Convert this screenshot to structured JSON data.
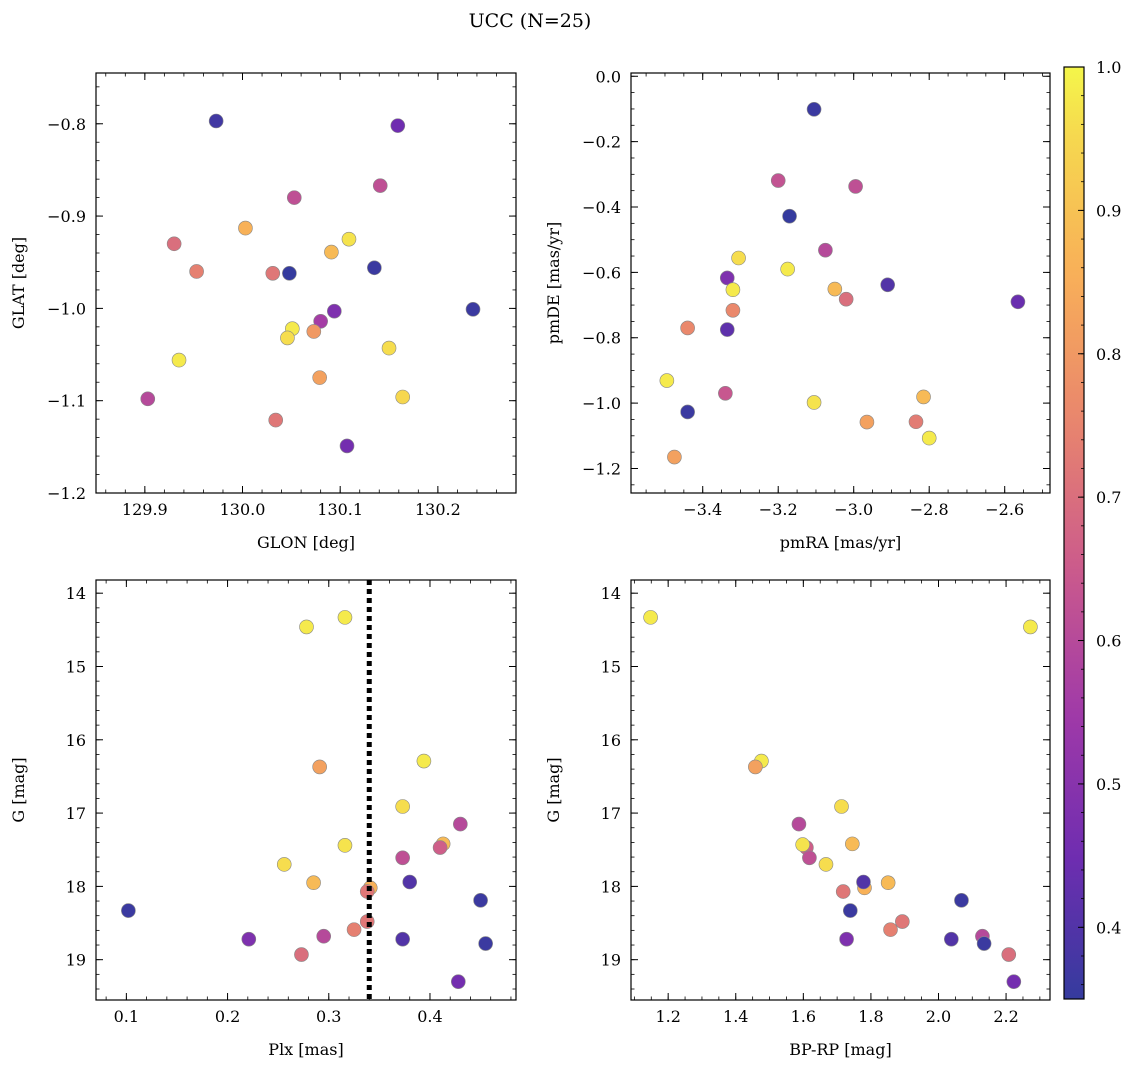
{
  "figure": {
    "suptitle": "UCC (N=25)"
  },
  "chart_data": [
    {
      "type": "scatter",
      "id": "glon-glat",
      "xlabel": "GLON [deg]",
      "ylabel": "GLAT [deg]",
      "xlim": [
        129.85,
        130.28
      ],
      "ylim": [
        -1.2,
        -0.745
      ],
      "xticks": [
        129.9,
        130.0,
        130.1,
        130.2
      ],
      "xticklabels": [
        "129.9",
        "130.0",
        "130.1",
        "130.2"
      ],
      "yticks": [
        -0.8,
        -0.9,
        -1.0,
        -1.1,
        -1.2
      ],
      "yticklabels": [
        "−0.8",
        "−0.9",
        "−1.0",
        "−1.1",
        "−1.2"
      ],
      "x": [
        129.973,
        130.159,
        130.141,
        130.053,
        130.003,
        129.93,
        130.109,
        130.091,
        129.953,
        130.031,
        130.048,
        130.135,
        130.236,
        130.094,
        130.08,
        130.051,
        130.073,
        130.046,
        130.15,
        129.935,
        130.079,
        130.164,
        129.903,
        130.034,
        130.107
      ],
      "y": [
        -0.797,
        -0.802,
        -0.867,
        -0.88,
        -0.913,
        -0.93,
        -0.925,
        -0.939,
        -0.96,
        -0.962,
        -0.962,
        -0.956,
        -1.001,
        -1.003,
        -1.014,
        -1.022,
        -1.025,
        -1.032,
        -1.043,
        -1.056,
        -1.075,
        -1.096,
        -1.098,
        -1.121,
        -1.149
      ],
      "c": [
        0.37,
        0.45,
        0.62,
        0.62,
        0.86,
        0.7,
        0.97,
        0.88,
        0.74,
        0.72,
        0.35,
        0.36,
        0.36,
        0.48,
        0.56,
        0.98,
        0.8,
        0.96,
        0.96,
        0.98,
        0.82,
        0.95,
        0.6,
        0.72,
        0.46
      ]
    },
    {
      "type": "scatter",
      "id": "pmra-pmde",
      "xlabel": "pmRA [mas/yr]",
      "ylabel": "pmDE [mas/yr]",
      "xlim": [
        -3.59,
        -2.48
      ],
      "ylim": [
        -1.275,
        0.01
      ],
      "xticks": [
        -3.4,
        -3.2,
        -3.0,
        -2.8,
        -2.6
      ],
      "xticklabels": [
        "−3.4",
        "−3.2",
        "−3.0",
        "−2.8",
        "−2.6"
      ],
      "yticks": [
        0.0,
        -0.2,
        -0.4,
        -0.6,
        -0.8,
        -1.0,
        -1.2
      ],
      "yticklabels": [
        "0.0",
        "−0.2",
        "−0.4",
        "−0.6",
        "−0.8",
        "−1.0",
        "−1.2"
      ],
      "x": [
        -3.105,
        -3.2,
        -2.995,
        -3.17,
        -3.075,
        -3.305,
        -3.175,
        -3.335,
        -2.91,
        -2.565,
        -3.05,
        -3.32,
        -3.02,
        -3.32,
        -3.44,
        -3.335,
        -3.495,
        -3.34,
        -3.44,
        -3.105,
        -2.815,
        -2.965,
        -2.835,
        -2.8,
        -3.475
      ],
      "y": [
        -0.101,
        -0.319,
        -0.337,
        -0.428,
        -0.532,
        -0.556,
        -0.59,
        -0.617,
        -0.638,
        -0.69,
        -0.651,
        -0.653,
        -0.682,
        -0.716,
        -0.77,
        -0.775,
        -0.931,
        -0.97,
        -1.027,
        -0.998,
        -0.981,
        -1.058,
        -1.057,
        -1.107,
        -1.165
      ],
      "c": [
        0.36,
        0.63,
        0.62,
        0.35,
        0.6,
        0.96,
        0.98,
        0.48,
        0.4,
        0.44,
        0.88,
        0.98,
        0.7,
        0.76,
        0.76,
        0.42,
        0.98,
        0.64,
        0.36,
        0.97,
        0.88,
        0.82,
        0.73,
        0.98,
        0.82
      ]
    },
    {
      "type": "scatter",
      "id": "plx-g",
      "xlabel": "Plx [mas]",
      "ylabel": "G [mag]",
      "xlim": [
        0.07,
        0.485
      ],
      "ylim": [
        19.55,
        13.82
      ],
      "y_inverted": true,
      "xticks": [
        0.1,
        0.2,
        0.3,
        0.4
      ],
      "xticklabels": [
        "0.1",
        "0.2",
        "0.3",
        "0.4"
      ],
      "yticks": [
        14,
        15,
        16,
        17,
        18,
        19
      ],
      "yticklabels": [
        "14",
        "15",
        "16",
        "17",
        "18",
        "19"
      ],
      "vline": {
        "x": 0.34,
        "style": "dotted",
        "color": "#000000"
      },
      "x": [
        0.316,
        0.278,
        0.394,
        0.291,
        0.373,
        0.43,
        0.413,
        0.316,
        0.41,
        0.373,
        0.256,
        0.285,
        0.341,
        0.38,
        0.338,
        0.102,
        0.45,
        0.338,
        0.325,
        0.221,
        0.295,
        0.373,
        0.455,
        0.273,
        0.428
      ],
      "y": [
        14.33,
        14.46,
        16.29,
        16.37,
        16.91,
        17.15,
        17.42,
        17.44,
        17.47,
        17.61,
        17.7,
        17.95,
        18.02,
        17.94,
        18.07,
        18.33,
        18.19,
        18.48,
        18.59,
        18.72,
        18.68,
        18.72,
        18.78,
        18.93,
        19.3
      ],
      "c": [
        0.98,
        0.98,
        0.98,
        0.82,
        0.96,
        0.6,
        0.88,
        0.97,
        0.66,
        0.62,
        0.96,
        0.88,
        0.86,
        0.4,
        0.72,
        0.36,
        0.36,
        0.72,
        0.74,
        0.48,
        0.6,
        0.4,
        0.36,
        0.7,
        0.46
      ]
    },
    {
      "type": "scatter",
      "id": "bprp-g",
      "xlabel": "BP-RP [mag]",
      "ylabel": "G [mag]",
      "xlim": [
        1.09,
        2.33
      ],
      "ylim": [
        19.55,
        13.82
      ],
      "y_inverted": true,
      "xticks": [
        1.2,
        1.4,
        1.6,
        1.8,
        2.0,
        2.2
      ],
      "xticklabels": [
        "1.2",
        "1.4",
        "1.6",
        "1.8",
        "2.0",
        "2.2"
      ],
      "yticks": [
        14,
        15,
        16,
        17,
        18,
        19
      ],
      "yticklabels": [
        "14",
        "15",
        "16",
        "17",
        "18",
        "19"
      ],
      "x": [
        1.148,
        2.272,
        1.476,
        1.458,
        1.713,
        1.587,
        1.609,
        1.598,
        1.745,
        1.618,
        1.667,
        1.851,
        1.781,
        1.778,
        1.718,
        1.739,
        2.068,
        1.893,
        1.858,
        1.728,
        2.038,
        2.13,
        2.135,
        2.208,
        2.223
      ],
      "y": [
        14.33,
        14.46,
        16.29,
        16.37,
        16.91,
        17.15,
        17.47,
        17.43,
        17.42,
        17.61,
        17.7,
        17.95,
        18.02,
        17.94,
        18.07,
        18.33,
        18.19,
        18.48,
        18.59,
        18.72,
        18.72,
        18.68,
        18.78,
        18.93,
        19.3
      ],
      "c": [
        0.98,
        0.98,
        0.98,
        0.82,
        0.96,
        0.6,
        0.66,
        0.97,
        0.88,
        0.62,
        0.96,
        0.88,
        0.86,
        0.4,
        0.72,
        0.36,
        0.36,
        0.72,
        0.74,
        0.48,
        0.4,
        0.6,
        0.36,
        0.7,
        0.46
      ]
    }
  ],
  "colorbar": {
    "cmap": "plasma",
    "range": [
      0.35,
      1.0
    ],
    "ticks": [
      0.4,
      0.5,
      0.6,
      0.7,
      0.8,
      0.9,
      1.0
    ],
    "ticklabels": [
      "0.4",
      "0.5",
      "0.6",
      "0.7",
      "0.8",
      "0.9",
      "1.0"
    ],
    "colors": {
      "0.35": "#353b9e",
      "0.45": "#6f2db0",
      "0.55": "#a03aa8",
      "0.65": "#cb5a8c",
      "0.75": "#e8846e",
      "0.85": "#f8ad59",
      "0.95": "#f6d74f",
      "1.00": "#f4f64a"
    }
  }
}
